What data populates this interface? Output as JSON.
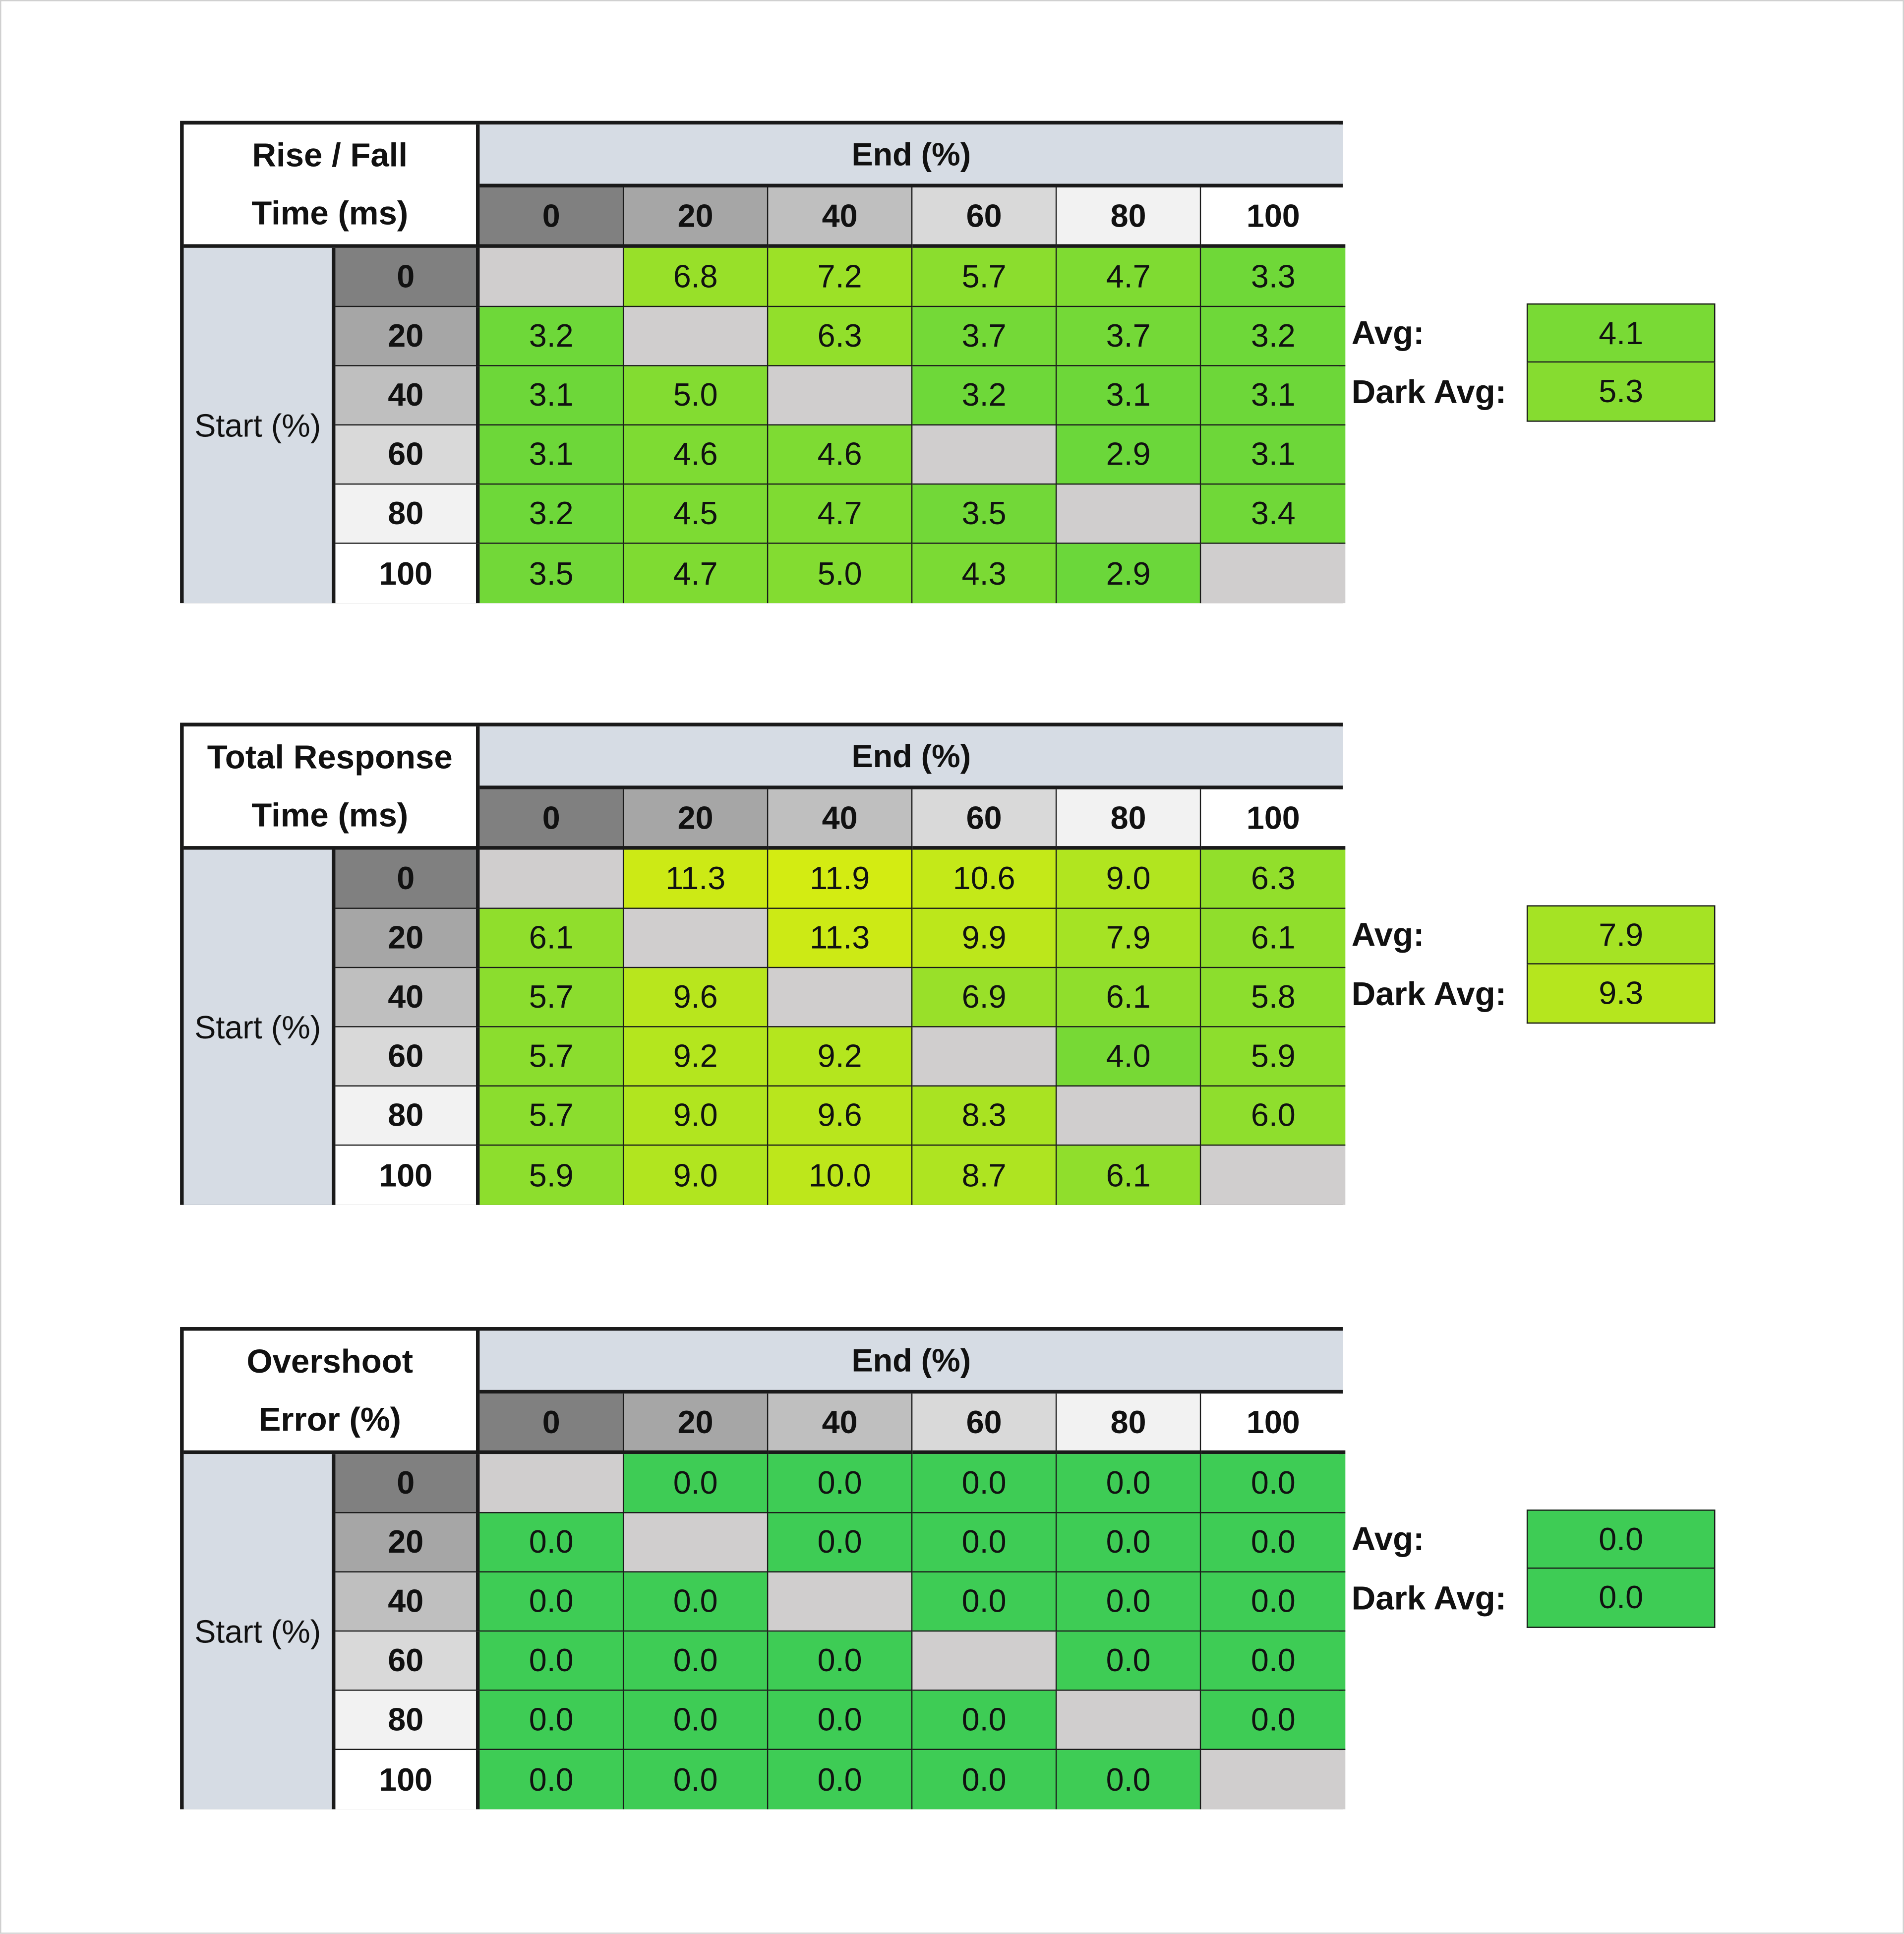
{
  "common": {
    "end_label": "End (%)",
    "start_label": "Start (%)",
    "levels": [
      "0",
      "20",
      "40",
      "60",
      "80",
      "100"
    ],
    "avg_label": "Avg:",
    "dark_avg_label": "Dark Avg:"
  },
  "tables": [
    {
      "title_line1": "Rise / Fall",
      "title_line2": "Time (ms)",
      "kind": "time",
      "rows": [
        [
          "",
          "6.8",
          "7.2",
          "5.7",
          "4.7",
          "3.3"
        ],
        [
          "3.2",
          "",
          "6.3",
          "3.7",
          "3.7",
          "3.2"
        ],
        [
          "3.1",
          "5.0",
          "",
          "3.2",
          "3.1",
          "3.1"
        ],
        [
          "3.1",
          "4.6",
          "4.6",
          "",
          "2.9",
          "3.1"
        ],
        [
          "3.2",
          "4.5",
          "4.7",
          "3.5",
          "",
          "3.4"
        ],
        [
          "3.5",
          "4.7",
          "5.0",
          "4.3",
          "2.9",
          ""
        ]
      ],
      "avg": "4.1",
      "dark_avg": "5.3"
    },
    {
      "title_line1": "Total Response",
      "title_line2": "Time (ms)",
      "kind": "time",
      "rows": [
        [
          "",
          "11.3",
          "11.9",
          "10.6",
          "9.0",
          "6.3"
        ],
        [
          "6.1",
          "",
          "11.3",
          "9.9",
          "7.9",
          "6.1"
        ],
        [
          "5.7",
          "9.6",
          "",
          "6.9",
          "6.1",
          "5.8"
        ],
        [
          "5.7",
          "9.2",
          "9.2",
          "",
          "4.0",
          "5.9"
        ],
        [
          "5.7",
          "9.0",
          "9.6",
          "8.3",
          "",
          "6.0"
        ],
        [
          "5.9",
          "9.0",
          "10.0",
          "8.7",
          "6.1",
          ""
        ]
      ],
      "avg": "7.9",
      "dark_avg": "9.3"
    },
    {
      "title_line1": "Overshoot",
      "title_line2": "Error (%)",
      "kind": "overshoot",
      "rows": [
        [
          "",
          "0.0",
          "0.0",
          "0.0",
          "0.0",
          "0.0"
        ],
        [
          "0.0",
          "",
          "0.0",
          "0.0",
          "0.0",
          "0.0"
        ],
        [
          "0.0",
          "0.0",
          "",
          "0.0",
          "0.0",
          "0.0"
        ],
        [
          "0.0",
          "0.0",
          "0.0",
          "",
          "0.0",
          "0.0"
        ],
        [
          "0.0",
          "0.0",
          "0.0",
          "0.0",
          "",
          "0.0"
        ],
        [
          "0.0",
          "0.0",
          "0.0",
          "0.0",
          "0.0",
          ""
        ]
      ],
      "avg": "0.0",
      "dark_avg": "0.0"
    }
  ],
  "colors": {
    "header_greys": [
      "#808080",
      "#a6a6a6",
      "#bfbfbf",
      "#d9d9d9",
      "#f2f2f2",
      "#ffffff"
    ],
    "empty": "#d0cece",
    "low": "#66d63c",
    "high": "#d4ec12",
    "overshoot": "#3ecc55"
  }
}
